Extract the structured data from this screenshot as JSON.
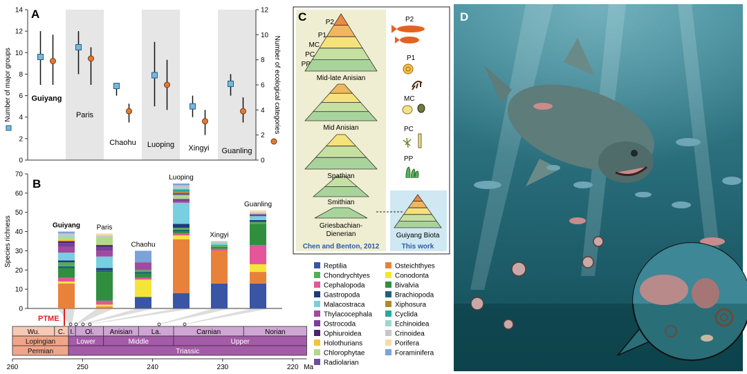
{
  "panel_labels": {
    "a": "A",
    "b": "B",
    "c": "C",
    "d": "D"
  },
  "panel_a": {
    "y_left_label": "Number of major groups",
    "y_right_label": "Number of ecological categories",
    "y_left_ticks": [
      "0",
      "2",
      "4",
      "6",
      "8",
      "10",
      "12",
      "14"
    ],
    "y_right_ticks": [
      "0",
      "2",
      "4",
      "6",
      "8",
      "10",
      "12"
    ],
    "colors": {
      "square": "#7ab6dc",
      "circle": "#e07a32",
      "shade": "#e6e6e6"
    }
  },
  "panel_b": {
    "ylabel": "Species richness",
    "y_ticks": [
      "0",
      "10",
      "20",
      "30",
      "40",
      "50",
      "60",
      "70"
    ],
    "ptme_label": "PTME",
    "ptme_color": "#e02020"
  },
  "timescale": {
    "periods": [
      "Permian",
      "Triassic"
    ],
    "epochs": [
      "Lopingian",
      "Lower",
      "Middle",
      "Upper"
    ],
    "stages": [
      "Wu.",
      "C.",
      "I.",
      "Ol.",
      "Anisian",
      "La.",
      "Carnian",
      "Norian"
    ],
    "axis_ticks": [
      "260",
      "250",
      "240",
      "230",
      "220"
    ],
    "axis_unit": "Ma",
    "colors": {
      "permian": "#f0a58a",
      "permian_light": "#f6c8b6",
      "triassic": "#a45ba8",
      "triassic_light": "#cfa6d3"
    }
  },
  "chart_data": [
    {
      "type": "scatter",
      "panel": "A",
      "categories": [
        "Guiyang",
        "Paris",
        "Chaohu",
        "Luoping",
        "Xingyi",
        "Guanling"
      ],
      "ylabel": "Number of major groups",
      "y2label": "Number of ecological categories",
      "ylim": [
        0,
        14
      ],
      "y2lim": [
        0,
        12
      ],
      "series": [
        {
          "values": [
            9.6,
            10.5,
            6.9,
            7.9,
            5.0,
            7.1
          ],
          "lower": [
            7.0,
            8.0,
            6.0,
            5.0,
            4.0,
            6.0
          ],
          "upper": [
            12.0,
            12.0,
            7.0,
            11.0,
            6.0,
            8.0
          ]
        },
        {
          "values": [
            7.9,
            8.1,
            3.9,
            6.0,
            3.1,
            3.9
          ],
          "lower": [
            6.0,
            6.0,
            3.0,
            4.0,
            2.0,
            3.0
          ],
          "upper": [
            10.0,
            9.0,
            4.5,
            8.0,
            4.0,
            5.0
          ]
        }
      ],
      "shaded": [
        false,
        true,
        false,
        true,
        false,
        true
      ]
    },
    {
      "type": "bar",
      "panel": "B",
      "stacked": true,
      "ylabel": "Species richness",
      "ylim": [
        0,
        70
      ],
      "categories": [
        "Guiyang",
        "Paris",
        "Chaohu",
        "Luoping",
        "Xingyi",
        "Guanling"
      ],
      "series": [
        {
          "name": "Reptilia",
          "color": "#3a55a4",
          "values": [
            0,
            0,
            6,
            8,
            13,
            13
          ]
        },
        {
          "name": "Osteichthyes",
          "color": "#e8823a",
          "values": [
            13,
            1,
            0,
            28,
            17,
            6
          ]
        },
        {
          "name": "Conodonta",
          "color": "#f5e53a",
          "values": [
            1,
            1,
            9,
            2,
            0,
            4
          ]
        },
        {
          "name": "Cephalopoda",
          "color": "#e4559a",
          "values": [
            2,
            2,
            1,
            1,
            1,
            10
          ]
        },
        {
          "name": "Bivalvia",
          "color": "#2f8f3f",
          "values": [
            5,
            15,
            2,
            1,
            1,
            11
          ]
        },
        {
          "name": "Brachiopoda",
          "color": "#22607a",
          "values": [
            1,
            1,
            1,
            1,
            0,
            0
          ]
        },
        {
          "name": "Chondrychtyes",
          "color": "#55ad55",
          "values": [
            2,
            0,
            1,
            1,
            1,
            1
          ]
        },
        {
          "name": "Gastropoda",
          "color": "#1f3a7a",
          "values": [
            1,
            1,
            0,
            2,
            0,
            1
          ]
        },
        {
          "name": "Malacostraca",
          "color": "#78cfe0",
          "values": [
            4,
            6,
            0,
            11,
            1,
            2
          ]
        },
        {
          "name": "Thylacocephala",
          "color": "#a04aa0",
          "values": [
            3,
            3,
            4,
            1,
            0,
            0
          ]
        },
        {
          "name": "Ostrocoda",
          "color": "#7a3f96",
          "values": [
            2,
            2,
            0,
            1,
            0,
            1
          ]
        },
        {
          "name": "Ophiuroidea",
          "color": "#4b2373",
          "values": [
            1,
            1,
            0,
            0,
            0,
            0
          ]
        },
        {
          "name": "Holothurians",
          "color": "#f3c23f",
          "values": [
            1,
            0,
            0,
            0,
            0,
            0
          ]
        },
        {
          "name": "Chlorophytae",
          "color": "#b2d98a",
          "values": [
            1,
            4,
            0,
            2,
            0,
            0
          ]
        },
        {
          "name": "Radiolarian",
          "color": "#6b4fa0",
          "values": [
            0,
            0,
            0,
            1,
            0,
            0
          ]
        },
        {
          "name": "Xiphosura",
          "color": "#ad8a2a",
          "values": [
            0,
            0,
            0,
            1,
            0,
            0
          ]
        },
        {
          "name": "Cyclida",
          "color": "#25a8a2",
          "values": [
            0,
            0,
            0,
            1,
            0,
            0
          ]
        },
        {
          "name": "Echinoidea",
          "color": "#9fd6cf",
          "values": [
            1,
            0,
            0,
            1,
            0,
            0
          ]
        },
        {
          "name": "Crinoidea",
          "color": "#c6c6c6",
          "values": [
            1,
            1,
            0,
            1,
            1,
            1
          ]
        },
        {
          "name": "Porifera",
          "color": "#f3dca5",
          "values": [
            0,
            1,
            0,
            0,
            0,
            1
          ]
        },
        {
          "name": "Foraminifera",
          "color": "#7da2d8",
          "values": [
            1,
            0,
            6,
            1,
            0,
            0
          ]
        }
      ]
    }
  ],
  "panel_c": {
    "levels": [
      "P2",
      "P1",
      "MC",
      "PC",
      "PP"
    ],
    "stages": [
      "Mid-late Anisian",
      "Mid Anisian",
      "Spathian",
      "Smithian",
      "Griesbachian-\nDienerian"
    ],
    "left_caption": "Chen and Benton, 2012",
    "right_label": "Guiyang Biota",
    "right_caption": "This work",
    "colors": {
      "bg_left": "#efeed2",
      "bg_right": "#cfe8f1",
      "caption": "#2e5aa8",
      "P2": "#ea8a45",
      "P1": "#f2b75e",
      "MC": "#f6e27a",
      "PC": "#c6e0a2",
      "PP": "#a8d49c"
    }
  },
  "legend": {
    "items": [
      {
        "name": "Reptilia",
        "color": "#3a55a4"
      },
      {
        "name": "Osteichthyes",
        "color": "#e8823a"
      },
      {
        "name": "Chondrychtyes",
        "color": "#55ad55"
      },
      {
        "name": "Conodonta",
        "color": "#f5e53a"
      },
      {
        "name": "Cephalopoda",
        "color": "#e4559a"
      },
      {
        "name": "Bivalvia",
        "color": "#2f8f3f"
      },
      {
        "name": "Gastropoda",
        "color": "#1f3a7a"
      },
      {
        "name": "Brachiopoda",
        "color": "#22607a"
      },
      {
        "name": "Malacostraca",
        "color": "#78cfe0"
      },
      {
        "name": "Xiphosura",
        "color": "#ad8a2a"
      },
      {
        "name": "Thylacocephala",
        "color": "#a04aa0"
      },
      {
        "name": "Cyclida",
        "color": "#25a8a2"
      },
      {
        "name": "Ostrocoda",
        "color": "#7a3f96"
      },
      {
        "name": "Echinoidea",
        "color": "#9fd6cf"
      },
      {
        "name": "Ophiuroidea",
        "color": "#4b2373"
      },
      {
        "name": "Crinoidea",
        "color": "#c6c6c6"
      },
      {
        "name": "Holothurians",
        "color": "#f3c23f"
      },
      {
        "name": "Porifera",
        "color": "#f3dca5"
      },
      {
        "name": "Chlorophytae",
        "color": "#b2d98a"
      },
      {
        "name": "Foraminifera",
        "color": "#7da2d8"
      },
      {
        "name": "Radiolarian",
        "color": "#6b4fa0"
      }
    ]
  },
  "panel_d": {
    "colors": {
      "water_top": "#3d8797",
      "water_bottom": "#0f4a55",
      "fish": "#5d7c7a",
      "accent": "#c88c8c"
    }
  }
}
